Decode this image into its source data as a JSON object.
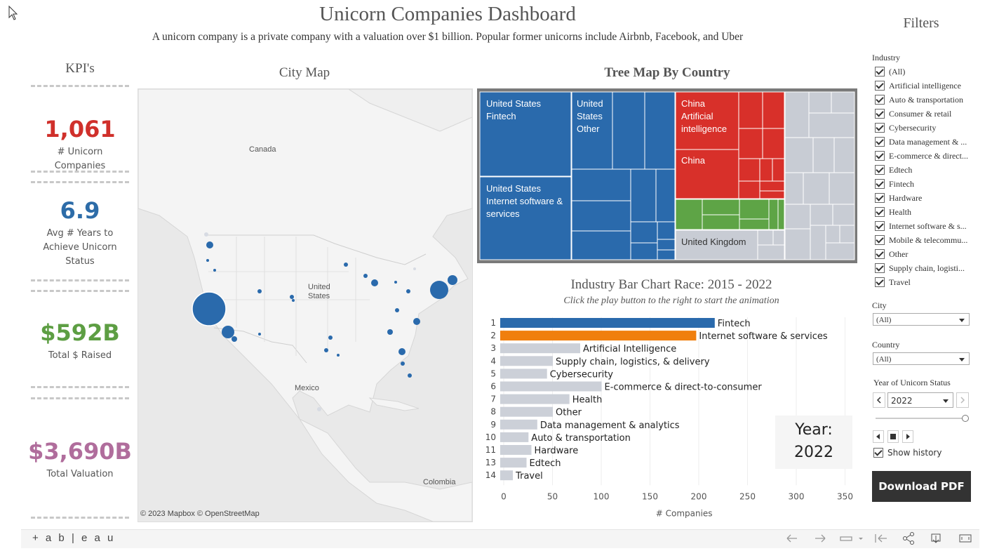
{
  "header": {
    "title": "Unicorn Companies Dashboard",
    "subtitle": "A unicorn company is a private company with a valuation over $1 billion.  Popular former unicorns include Airbnb, Facebook, and Uber"
  },
  "kpi": {
    "title": "KPI's",
    "items": [
      {
        "value": "1,061",
        "label": "# Unicorn Companies",
        "color": "#d0302b"
      },
      {
        "value": "6.9",
        "label": "Avg # Years to Achieve Unicorn Status",
        "color": "#2d6ca8"
      },
      {
        "value": "$592B",
        "label": "Total $ Raised",
        "color": "#5d9e43"
      },
      {
        "value": "$3,690B",
        "label": "Total Valuation",
        "color": "#b06d9c"
      }
    ]
  },
  "map": {
    "title": "City Map",
    "labels": {
      "canada": "Canada",
      "us": "United States",
      "mexico": "Mexico",
      "colombia": "Colombia"
    },
    "credit": "© 2023 Mapbox  © OpenStreetMap"
  },
  "treemap": {
    "title": "Tree Map By Country",
    "labels": {
      "us_fintech": "United States Fintech",
      "us_other": "United States Other",
      "us_internet": "United States Internet software & services",
      "china_ai": "China Artificial intelligence",
      "china": "China",
      "uk": "United Kingdom"
    },
    "colors": {
      "us": "#2a6aac",
      "china": "#d8302a",
      "uk": "#5ea446",
      "other": "#c8ccd4"
    }
  },
  "barchart": {
    "title": "Industry Bar Chart Race: 2015 - 2022",
    "subtitle": "Click the play button to the right to start the animation",
    "year_label": "Year:",
    "year_value": "2022"
  },
  "chart_data": {
    "type": "bar",
    "orientation": "horizontal",
    "title": "Industry Bar Chart Race: 2015 - 2022",
    "xlabel": "# Companies",
    "xlim": [
      0,
      360
    ],
    "xticks": [
      0,
      50,
      100,
      150,
      200,
      250,
      300,
      350
    ],
    "grid": true,
    "bars": [
      {
        "rank": "1",
        "category": "Fintech",
        "value": 220,
        "color": "#2a6aac"
      },
      {
        "rank": "2",
        "category": "Internet software & services",
        "value": 201,
        "color": "#f07f0e"
      },
      {
        "rank": "3",
        "category": "Artificial Intelligence",
        "value": 82,
        "color": "#ccd0d8"
      },
      {
        "rank": "4",
        "category": "Supply chain, logistics, & delivery",
        "value": 54,
        "color": "#ccd0d8"
      },
      {
        "rank": "5",
        "category": "Cybersecurity",
        "value": 48,
        "color": "#ccd0d8"
      },
      {
        "rank": "6",
        "category": "E-commerce & direct-to-consumer",
        "value": 104,
        "color": "#ccd0d8"
      },
      {
        "rank": "7",
        "category": "Health",
        "value": 71,
        "color": "#ccd0d8"
      },
      {
        "rank": "8",
        "category": "Other",
        "value": 54,
        "color": "#ccd0d8"
      },
      {
        "rank": "9",
        "category": "Data management & analytics",
        "value": 38,
        "color": "#ccd0d8"
      },
      {
        "rank": "10",
        "category": "Auto & transportation",
        "value": 29,
        "color": "#ccd0d8"
      },
      {
        "rank": "11",
        "category": "Hardware",
        "value": 32,
        "color": "#ccd0d8"
      },
      {
        "rank": "13",
        "category": "Edtech",
        "value": 27,
        "color": "#ccd0d8"
      },
      {
        "rank": "14",
        "category": "Travel",
        "value": 13,
        "color": "#ccd0d8"
      }
    ]
  },
  "filters": {
    "title": "Filters",
    "industry_label": "Industry",
    "industries": [
      "(All)",
      "Artificial intelligence",
      "Auto & transportation",
      "Consumer & retail",
      "Cybersecurity",
      "Data management & ...",
      "E-commerce & direct...",
      "Edtech",
      "Fintech",
      "Hardware",
      "Health",
      "Internet software & s...",
      "Mobile & telecommu...",
      "Other",
      "Supply chain, logisti...",
      "Travel"
    ],
    "city_label": "City",
    "city_value": "(All)",
    "country_label": "Country",
    "country_value": "(All)",
    "year_label": "Year of Unicorn Status",
    "year_value": "2022",
    "show_history": "Show history",
    "download": "Download PDF"
  },
  "toolbar": {
    "logo": "+ a b | e a u"
  }
}
